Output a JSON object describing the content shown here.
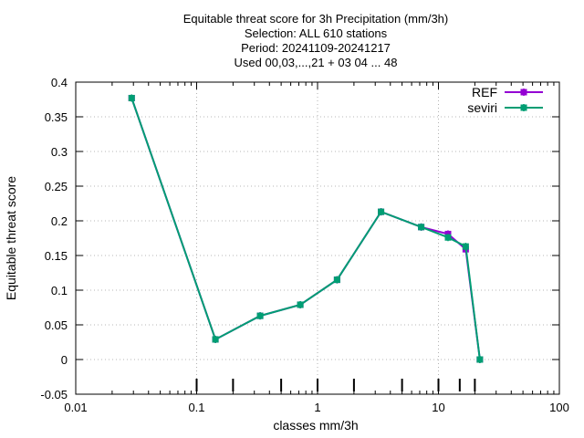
{
  "chart_data": {
    "type": "line",
    "title_lines": [
      "Equitable threat score  for 3h Precipitation (mm/3h)",
      "Selection: ALL    610 stations",
      "Period: 20241109-20241217",
      "Used 00,03,...,21 + 03 04 ... 48"
    ],
    "xlabel": "classes mm/3h",
    "ylabel": "Equitable threat score",
    "x_scale": "log",
    "xlim": [
      0.01,
      100
    ],
    "ylim": [
      -0.05,
      0.4
    ],
    "x_ticks": [
      0.01,
      0.1,
      1,
      10,
      100
    ],
    "x_tick_labels": [
      "0.01",
      "0.1",
      "1",
      "10",
      "100"
    ],
    "y_ticks": [
      -0.05,
      0,
      0.05,
      0.1,
      0.15,
      0.2,
      0.25,
      0.3,
      0.35,
      0.4
    ],
    "y_tick_labels": [
      "-0.05",
      "0",
      "0.05",
      "0.1",
      "0.15",
      "0.2",
      "0.25",
      "0.3",
      "0.35",
      "0.4"
    ],
    "grid": true,
    "legend_position": "top-right",
    "class_markers": [
      0.1,
      0.2,
      0.5,
      1,
      2,
      5,
      10,
      15,
      20
    ],
    "series": [
      {
        "name": "REF",
        "color": "#9400d3",
        "x": [
          0.029,
          0.143,
          0.335,
          0.72,
          1.45,
          3.35,
          7.2,
          12,
          16.8,
          22
        ],
        "y": [
          0.377,
          0.029,
          0.063,
          0.079,
          0.115,
          0.213,
          0.191,
          0.181,
          0.159,
          0.0
        ]
      },
      {
        "name": "seviri",
        "color": "#009e73",
        "x": [
          0.029,
          0.143,
          0.335,
          0.72,
          1.45,
          3.35,
          7.2,
          12,
          16.8,
          22
        ],
        "y": [
          0.377,
          0.029,
          0.063,
          0.079,
          0.115,
          0.213,
          0.191,
          0.176,
          0.163,
          0.0
        ]
      }
    ]
  }
}
